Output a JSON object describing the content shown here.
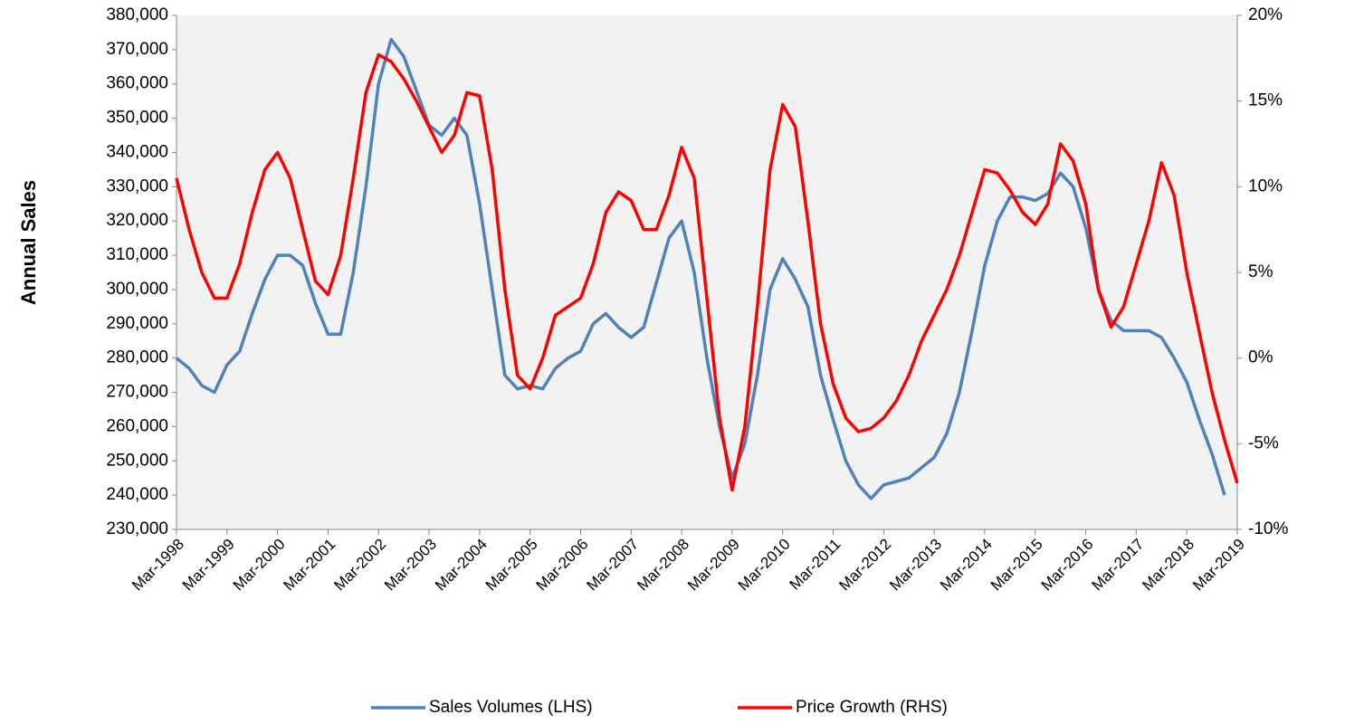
{
  "chart_data": {
    "type": "line",
    "ylabel": "Annual Sales",
    "categories": [
      "Mar-1998",
      null,
      null,
      null,
      "Mar-1999",
      null,
      null,
      null,
      "Mar-2000",
      null,
      null,
      null,
      "Mar-2001",
      null,
      null,
      null,
      "Mar-2002",
      null,
      null,
      null,
      "Mar-2003",
      null,
      null,
      null,
      "Mar-2004",
      null,
      null,
      null,
      "Mar-2005",
      null,
      null,
      null,
      "Mar-2006",
      null,
      null,
      null,
      "Mar-2007",
      null,
      null,
      null,
      "Mar-2008",
      null,
      null,
      null,
      "Mar-2009",
      null,
      null,
      null,
      "Mar-2010",
      null,
      null,
      null,
      "Mar-2011",
      null,
      null,
      null,
      "Mar-2012",
      null,
      null,
      null,
      "Mar-2013",
      null,
      null,
      null,
      "Mar-2014",
      null,
      null,
      null,
      "Mar-2015",
      null,
      null,
      null,
      "Mar-2016",
      null,
      null,
      null,
      "Mar-2017",
      null,
      null,
      null,
      "Mar-2018",
      null,
      null,
      null,
      "Mar-2019"
    ],
    "series": [
      {
        "name": "Sales Volumes (LHS)",
        "color": "#4f81bd",
        "axis": "y",
        "values": [
          280000,
          277000,
          272000,
          270000,
          278000,
          282000,
          293000,
          303000,
          310000,
          310000,
          307000,
          296000,
          287000,
          287000,
          305000,
          330000,
          360000,
          373000,
          368000,
          358000,
          348000,
          345000,
          350000,
          345000,
          325000,
          300000,
          275000,
          271000,
          272000,
          271000,
          277000,
          280000,
          282000,
          290000,
          293000,
          289000,
          286000,
          289000,
          302000,
          315000,
          320000,
          305000,
          280000,
          260000,
          245000,
          255000,
          275000,
          300000,
          309000,
          303000,
          295000,
          275000,
          262000,
          250000,
          243000,
          239000,
          243000,
          244000,
          245000,
          248000,
          251000,
          258000,
          270000,
          288000,
          307000,
          320000,
          327000,
          327000,
          326000,
          328000,
          334000,
          330000,
          318000,
          300000,
          291000,
          288000,
          288000,
          288000,
          286000,
          280000,
          273000,
          262000,
          252000,
          240000,
          null
        ]
      },
      {
        "name": "Price Growth (RHS)",
        "color": "#ff0000",
        "axis": "y2",
        "values": [
          10.5,
          7.5,
          5,
          3.5,
          3.5,
          5.5,
          8.5,
          11,
          12,
          10.5,
          7.5,
          4.5,
          3.7,
          6,
          10.5,
          15.5,
          17.7,
          17.3,
          16.3,
          15,
          13.5,
          12,
          13,
          15.5,
          15.3,
          11,
          4,
          -1,
          -1.8,
          0,
          2.5,
          3,
          3.5,
          5.5,
          8.5,
          9.7,
          9.2,
          7.5,
          7.5,
          9.5,
          12.3,
          10.5,
          3.5,
          -3.5,
          -7.7,
          -4,
          3,
          11,
          14.8,
          13.5,
          8,
          2,
          -1.5,
          -3.5,
          -4.3,
          -4.1,
          -3.5,
          -2.5,
          -1,
          1,
          2.5,
          4,
          6,
          8.5,
          11,
          10.8,
          9.8,
          8.5,
          7.8,
          9,
          12.5,
          11.5,
          9,
          4,
          1.8,
          3,
          5.5,
          8,
          11.4,
          9.5,
          5,
          1.5,
          -2,
          -4.8,
          -7.3
        ]
      }
    ],
    "ylim": [
      230000,
      380000
    ],
    "yticks": [
      {
        "value": 230000,
        "label": "230,000"
      },
      {
        "value": 240000,
        "label": "240,000"
      },
      {
        "value": 250000,
        "label": "250,000"
      },
      {
        "value": 260000,
        "label": "260,000"
      },
      {
        "value": 270000,
        "label": "270,000"
      },
      {
        "value": 280000,
        "label": "280,000"
      },
      {
        "value": 290000,
        "label": "290,000"
      },
      {
        "value": 300000,
        "label": "300,000"
      },
      {
        "value": 310000,
        "label": "310,000"
      },
      {
        "value": 320000,
        "label": "320,000"
      },
      {
        "value": 330000,
        "label": "330,000"
      },
      {
        "value": 340000,
        "label": "340,000"
      },
      {
        "value": 350000,
        "label": "350,000"
      },
      {
        "value": 360000,
        "label": "360,000"
      },
      {
        "value": 370000,
        "label": "370,000"
      },
      {
        "value": 380000,
        "label": "380,000"
      }
    ],
    "y2lim": [
      -10,
      20
    ],
    "y2ticks": [
      {
        "value": -10,
        "label": "-10%"
      },
      {
        "value": -5,
        "label": "-5%"
      },
      {
        "value": 0,
        "label": "0%"
      },
      {
        "value": 5,
        "label": "5%"
      },
      {
        "value": 10,
        "label": "10%"
      },
      {
        "value": 15,
        "label": "15%"
      },
      {
        "value": 20,
        "label": "20%"
      }
    ],
    "legend": "bottom"
  }
}
